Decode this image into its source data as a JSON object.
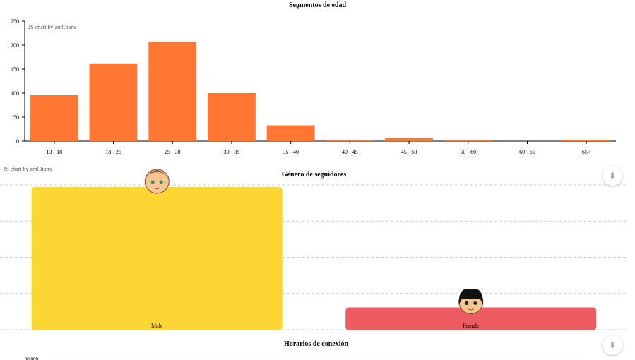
{
  "chart_data": [
    {
      "type": "bar",
      "title": "Segmentos de edad",
      "credit": "JS chart by amCharts",
      "categories": [
        "13 - 18",
        "18 - 25",
        "25 - 30",
        "30 - 35",
        "35 - 40",
        "40 - 45",
        "45 - 50",
        "50 - 60",
        "60 - 65",
        "65+"
      ],
      "values": [
        96,
        162,
        207,
        100,
        33,
        2,
        6,
        2,
        0,
        3
      ],
      "ylim": [
        0,
        250
      ],
      "yticks": [
        "0",
        "50",
        "100",
        "150",
        "200",
        "250"
      ],
      "bar_color": "#ff7733"
    },
    {
      "type": "bar",
      "title": "Género de seguidores",
      "credit": "JS chart by amCharts",
      "categories": [
        "Male",
        "Female"
      ],
      "values": [
        1.0,
        0.16
      ],
      "colors": [
        "#fcd734",
        "#ec5c60"
      ],
      "icons": [
        "male-face-icon",
        "female-face-icon"
      ]
    },
    {
      "type": "bar",
      "title": "Horarios de conexión",
      "first_ytick": "80,000"
    }
  ],
  "controls": {
    "export_icon": "download-icon"
  }
}
